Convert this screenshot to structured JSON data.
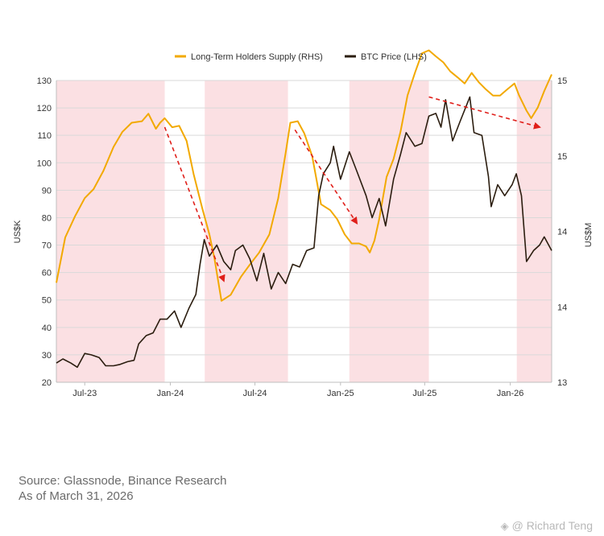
{
  "chart_data": {
    "type": "line",
    "legend": {
      "placement": "top-center",
      "items": [
        {
          "label": "Long-Term Holders Supply (RHS)",
          "color": "#F2A900"
        },
        {
          "label": "BTC Price (LHS)",
          "color": "#2B1D0F"
        }
      ]
    },
    "xlabel": "",
    "ylabel_left": "US$K",
    "ylabel_right": "US$M",
    "x_range": [
      "2023-05-01",
      "2026-03-31"
    ],
    "x_ticks": [
      {
        "date": "2023-07-01",
        "label": "Jul-23"
      },
      {
        "date": "2024-01-01",
        "label": "Jan-24"
      },
      {
        "date": "2024-07-01",
        "label": "Jul-24"
      },
      {
        "date": "2025-01-01",
        "label": "Jan-25"
      },
      {
        "date": "2025-07-01",
        "label": "Jul-25"
      },
      {
        "date": "2026-01-01",
        "label": "Jan-26"
      }
    ],
    "y_left": {
      "min": 20,
      "max": 130,
      "ticks": [
        20,
        30,
        40,
        50,
        60,
        70,
        80,
        90,
        100,
        110,
        120,
        130
      ]
    },
    "y_right": {
      "min": 13,
      "max": 15,
      "ticks": [
        {
          "value": 13,
          "label": "13"
        },
        {
          "value": 13.5,
          "label": "14"
        },
        {
          "value": 14,
          "label": "14"
        },
        {
          "value": 14.5,
          "label": "15"
        },
        {
          "value": 15,
          "label": "15"
        }
      ]
    },
    "grid": "horizontal",
    "shaded_periods": [
      [
        "2023-05-01",
        "2023-12-20"
      ],
      [
        "2024-03-15",
        "2024-09-10"
      ],
      [
        "2025-01-20",
        "2025-07-10"
      ],
      [
        "2026-01-15",
        "2026-03-31"
      ]
    ],
    "series": [
      {
        "name": "BTC Price (LHS)",
        "axis": "left",
        "color": "#2B1D0F",
        "points": [
          [
            "2023-05-01",
            27
          ],
          [
            "2023-05-15",
            28.5
          ],
          [
            "2023-06-01",
            27
          ],
          [
            "2023-06-15",
            25.5
          ],
          [
            "2023-07-01",
            30.5
          ],
          [
            "2023-07-15",
            30
          ],
          [
            "2023-08-01",
            29
          ],
          [
            "2023-08-15",
            26
          ],
          [
            "2023-09-01",
            26
          ],
          [
            "2023-09-15",
            26.5
          ],
          [
            "2023-10-01",
            27.5
          ],
          [
            "2023-10-15",
            28
          ],
          [
            "2023-10-25",
            34
          ],
          [
            "2023-11-10",
            37
          ],
          [
            "2023-11-25",
            38
          ],
          [
            "2023-12-10",
            43
          ],
          [
            "2023-12-25",
            43
          ],
          [
            "2024-01-10",
            46
          ],
          [
            "2024-01-24",
            40
          ],
          [
            "2024-02-10",
            47
          ],
          [
            "2024-02-25",
            52
          ],
          [
            "2024-03-05",
            63
          ],
          [
            "2024-03-14",
            72
          ],
          [
            "2024-03-25",
            66
          ],
          [
            "2024-04-10",
            70
          ],
          [
            "2024-04-25",
            64
          ],
          [
            "2024-05-10",
            61
          ],
          [
            "2024-05-20",
            68
          ],
          [
            "2024-06-05",
            70
          ],
          [
            "2024-06-20",
            65
          ],
          [
            "2024-07-05",
            57
          ],
          [
            "2024-07-20",
            67
          ],
          [
            "2024-08-05",
            54
          ],
          [
            "2024-08-20",
            60
          ],
          [
            "2024-09-05",
            56
          ],
          [
            "2024-09-20",
            63
          ],
          [
            "2024-10-05",
            62
          ],
          [
            "2024-10-20",
            68
          ],
          [
            "2024-11-05",
            69
          ],
          [
            "2024-11-15",
            88
          ],
          [
            "2024-11-25",
            96
          ],
          [
            "2024-12-10",
            100
          ],
          [
            "2024-12-17",
            106
          ],
          [
            "2025-01-01",
            94
          ],
          [
            "2025-01-20",
            104
          ],
          [
            "2025-02-05",
            97
          ],
          [
            "2025-02-25",
            88
          ],
          [
            "2025-03-10",
            80
          ],
          [
            "2025-03-25",
            87
          ],
          [
            "2025-04-08",
            77
          ],
          [
            "2025-04-25",
            94
          ],
          [
            "2025-05-10",
            103
          ],
          [
            "2025-05-22",
            111
          ],
          [
            "2025-06-10",
            106
          ],
          [
            "2025-06-25",
            107
          ],
          [
            "2025-07-10",
            117
          ],
          [
            "2025-07-25",
            118
          ],
          [
            "2025-08-05",
            113
          ],
          [
            "2025-08-15",
            123
          ],
          [
            "2025-08-30",
            108
          ],
          [
            "2025-09-15",
            115
          ],
          [
            "2025-10-06",
            124
          ],
          [
            "2025-10-15",
            111
          ],
          [
            "2025-11-01",
            110
          ],
          [
            "2025-11-15",
            95
          ],
          [
            "2025-11-21",
            84
          ],
          [
            "2025-12-05",
            92
          ],
          [
            "2025-12-20",
            88
          ],
          [
            "2026-01-05",
            92
          ],
          [
            "2026-01-14",
            96
          ],
          [
            "2026-01-25",
            88
          ],
          [
            "2026-02-05",
            64
          ],
          [
            "2026-02-20",
            68
          ],
          [
            "2026-03-05",
            70
          ],
          [
            "2026-03-15",
            73
          ],
          [
            "2026-03-31",
            68
          ]
        ]
      },
      {
        "name": "Long-Term Holders Supply (RHS)",
        "axis": "right",
        "color": "#F2A900",
        "points": [
          [
            "2023-05-01",
            13.66
          ],
          [
            "2023-05-20",
            13.96
          ],
          [
            "2023-06-10",
            14.1
          ],
          [
            "2023-07-01",
            14.22
          ],
          [
            "2023-07-20",
            14.28
          ],
          [
            "2023-08-10",
            14.4
          ],
          [
            "2023-09-01",
            14.56
          ],
          [
            "2023-09-20",
            14.66
          ],
          [
            "2023-10-10",
            14.72
          ],
          [
            "2023-11-01",
            14.73
          ],
          [
            "2023-11-15",
            14.78
          ],
          [
            "2023-12-01",
            14.68
          ],
          [
            "2023-12-10",
            14.72
          ],
          [
            "2023-12-20",
            14.75
          ],
          [
            "2024-01-05",
            14.69
          ],
          [
            "2024-01-20",
            14.7
          ],
          [
            "2024-02-05",
            14.6
          ],
          [
            "2024-02-20",
            14.38
          ],
          [
            "2024-03-10",
            14.15
          ],
          [
            "2024-03-25",
            13.98
          ],
          [
            "2024-04-05",
            13.82
          ],
          [
            "2024-04-20",
            13.54
          ],
          [
            "2024-05-10",
            13.58
          ],
          [
            "2024-06-01",
            13.7
          ],
          [
            "2024-06-20",
            13.78
          ],
          [
            "2024-07-10",
            13.86
          ],
          [
            "2024-08-01",
            13.98
          ],
          [
            "2024-08-20",
            14.22
          ],
          [
            "2024-09-05",
            14.52
          ],
          [
            "2024-09-15",
            14.72
          ],
          [
            "2024-10-01",
            14.73
          ],
          [
            "2024-10-15",
            14.65
          ],
          [
            "2024-11-01",
            14.5
          ],
          [
            "2024-11-10",
            14.35
          ],
          [
            "2024-11-20",
            14.18
          ],
          [
            "2024-12-10",
            14.14
          ],
          [
            "2024-12-25",
            14.08
          ],
          [
            "2025-01-10",
            13.98
          ],
          [
            "2025-01-25",
            13.92
          ],
          [
            "2025-02-10",
            13.92
          ],
          [
            "2025-02-25",
            13.9
          ],
          [
            "2025-03-05",
            13.86
          ],
          [
            "2025-03-15",
            13.94
          ],
          [
            "2025-03-25",
            14.08
          ],
          [
            "2025-04-10",
            14.36
          ],
          [
            "2025-04-25",
            14.48
          ],
          [
            "2025-05-10",
            14.66
          ],
          [
            "2025-05-25",
            14.9
          ],
          [
            "2025-06-10",
            15.05
          ],
          [
            "2025-06-25",
            15.18
          ],
          [
            "2025-07-10",
            15.2
          ],
          [
            "2025-07-25",
            15.16
          ],
          [
            "2025-08-10",
            15.12
          ],
          [
            "2025-08-25",
            15.06
          ],
          [
            "2025-09-10",
            15.02
          ],
          [
            "2025-09-25",
            14.98
          ],
          [
            "2025-10-10",
            15.05
          ],
          [
            "2025-10-25",
            14.99
          ],
          [
            "2025-11-10",
            14.94
          ],
          [
            "2025-11-25",
            14.9
          ],
          [
            "2025-12-10",
            14.9
          ],
          [
            "2025-12-25",
            14.94
          ],
          [
            "2026-01-10",
            14.98
          ],
          [
            "2026-01-20",
            14.9
          ],
          [
            "2026-02-05",
            14.8
          ],
          [
            "2026-02-15",
            14.75
          ],
          [
            "2026-03-01",
            14.82
          ],
          [
            "2026-03-15",
            14.93
          ],
          [
            "2026-03-31",
            15.04
          ]
        ]
      }
    ],
    "annotations": [
      {
        "type": "dashed-arrow",
        "color": "#E0201B",
        "from": {
          "date": "2023-12-20",
          "y_left": 113
        },
        "to": {
          "date": "2024-04-25",
          "y_left": 57
        }
      },
      {
        "type": "dashed-arrow",
        "color": "#E0201B",
        "from": {
          "date": "2024-09-25",
          "y_left": 112
        },
        "to": {
          "date": "2025-02-05",
          "y_left": 78
        }
      },
      {
        "type": "dashed-arrow",
        "color": "#E0201B",
        "from": {
          "date": "2025-07-10",
          "y_left": 124
        },
        "to": {
          "date": "2026-03-05",
          "y_left": 113
        }
      }
    ]
  },
  "footer": {
    "source_line": "Source: Glassnode, Binance Research",
    "asof_line": "As of March 31, 2026"
  },
  "watermark": {
    "icon": "binance-logo-icon",
    "text": "@ Richard Teng"
  }
}
